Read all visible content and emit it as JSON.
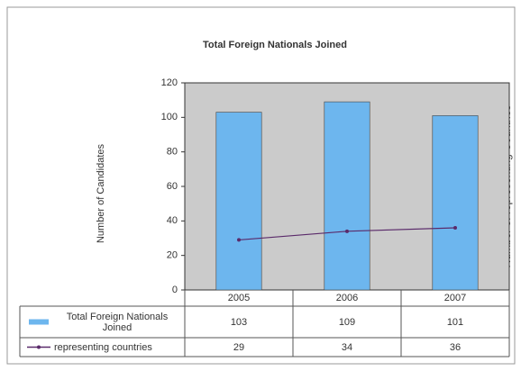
{
  "chart_data": {
    "type": "bar",
    "title": "Total Foreign Nationals Joined",
    "y_label": "Number of Candidates",
    "y2_label": "Number of representing Countries",
    "categories": [
      "2005",
      "2006",
      "2007"
    ],
    "series": [
      {
        "name": "Total Foreign Nationals Joined",
        "type": "bar",
        "color": "#6db6ee",
        "values": [
          103,
          109,
          101
        ]
      },
      {
        "name": "representing countries",
        "type": "line",
        "color": "#5a2a6a",
        "values": [
          29,
          34,
          36
        ]
      }
    ],
    "ylim": [
      0,
      120
    ],
    "yticks": [
      0,
      20,
      40,
      60,
      80,
      100,
      120
    ]
  }
}
